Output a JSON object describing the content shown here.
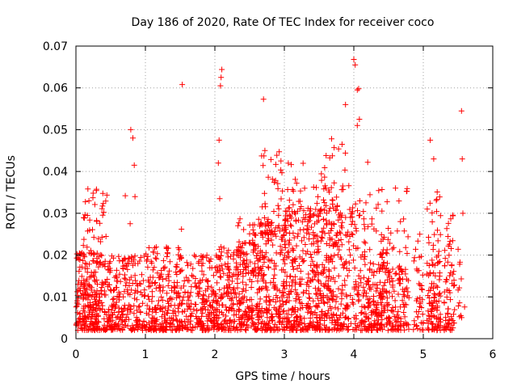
{
  "chart_data": {
    "type": "scatter",
    "title": "Day 186 of 2020, Rate Of TEC Index for receiver coco",
    "xlabel": "GPS time / hours",
    "ylabel": "ROTI / TECUs",
    "xlim": [
      0,
      6
    ],
    "ylim": [
      0,
      0.07
    ],
    "x_ticks": [
      0,
      1,
      2,
      3,
      4,
      5,
      6
    ],
    "x_tick_labels": [
      "0",
      "1",
      "2",
      "3",
      "4",
      "5",
      "6"
    ],
    "y_ticks": [
      0,
      0.01,
      0.02,
      0.03,
      0.04,
      0.05,
      0.06,
      0.07
    ],
    "y_tick_labels": [
      "0",
      "0.01",
      "0.02",
      "0.03",
      "0.04",
      "0.05",
      "0.06",
      "0.07"
    ],
    "grid": true,
    "marker": "+",
    "color": "#ff0000",
    "highlights": [
      {
        "x": 0.79,
        "y": 0.05
      },
      {
        "x": 0.82,
        "y": 0.048
      },
      {
        "x": 0.84,
        "y": 0.0415
      },
      {
        "x": 0.85,
        "y": 0.034
      },
      {
        "x": 0.71,
        "y": 0.0342
      },
      {
        "x": 0.78,
        "y": 0.0275
      },
      {
        "x": 1.53,
        "y": 0.0608
      },
      {
        "x": 1.52,
        "y": 0.0262
      },
      {
        "x": 2.1,
        "y": 0.0644
      },
      {
        "x": 2.09,
        "y": 0.0625
      },
      {
        "x": 2.08,
        "y": 0.0605
      },
      {
        "x": 2.06,
        "y": 0.0475
      },
      {
        "x": 2.05,
        "y": 0.042
      },
      {
        "x": 2.07,
        "y": 0.0335
      },
      {
        "x": 2.7,
        "y": 0.0573
      },
      {
        "x": 2.72,
        "y": 0.045
      },
      {
        "x": 3.68,
        "y": 0.0478
      },
      {
        "x": 3.83,
        "y": 0.0465
      },
      {
        "x": 3.88,
        "y": 0.056
      },
      {
        "x": 4.0,
        "y": 0.0668
      },
      {
        "x": 4.02,
        "y": 0.0655
      },
      {
        "x": 4.05,
        "y": 0.0595
      },
      {
        "x": 4.07,
        "y": 0.0598
      },
      {
        "x": 4.08,
        "y": 0.0525
      },
      {
        "x": 4.05,
        "y": 0.051
      },
      {
        "x": 4.2,
        "y": 0.0422
      },
      {
        "x": 4.6,
        "y": 0.036
      },
      {
        "x": 4.95,
        "y": 0.025
      },
      {
        "x": 5.1,
        "y": 0.0475
      },
      {
        "x": 5.15,
        "y": 0.043
      },
      {
        "x": 5.2,
        "y": 0.0351
      },
      {
        "x": 5.55,
        "y": 0.0545
      },
      {
        "x": 5.56,
        "y": 0.043
      },
      {
        "x": 5.57,
        "y": 0.03
      }
    ],
    "density_segments": [
      {
        "x_from": 0.0,
        "x_to": 0.35,
        "y_min": 0.002,
        "y_max": 0.021,
        "n": 220
      },
      {
        "x_from": 0.1,
        "x_to": 0.45,
        "y_min": 0.02,
        "y_max": 0.036,
        "n": 40
      },
      {
        "x_from": 0.35,
        "x_to": 1.0,
        "y_min": 0.002,
        "y_max": 0.02,
        "n": 260
      },
      {
        "x_from": 1.0,
        "x_to": 1.5,
        "y_min": 0.002,
        "y_max": 0.022,
        "n": 220
      },
      {
        "x_from": 1.5,
        "x_to": 2.0,
        "y_min": 0.002,
        "y_max": 0.02,
        "n": 200
      },
      {
        "x_from": 2.0,
        "x_to": 2.5,
        "y_min": 0.002,
        "y_max": 0.022,
        "n": 230
      },
      {
        "x_from": 2.3,
        "x_to": 2.7,
        "y_min": 0.015,
        "y_max": 0.029,
        "n": 50
      },
      {
        "x_from": 2.5,
        "x_to": 3.0,
        "y_min": 0.002,
        "y_max": 0.028,
        "n": 260
      },
      {
        "x_from": 2.65,
        "x_to": 3.0,
        "y_min": 0.025,
        "y_max": 0.045,
        "n": 45
      },
      {
        "x_from": 3.0,
        "x_to": 3.5,
        "y_min": 0.002,
        "y_max": 0.03,
        "n": 280
      },
      {
        "x_from": 3.0,
        "x_to": 3.5,
        "y_min": 0.028,
        "y_max": 0.044,
        "n": 50
      },
      {
        "x_from": 3.5,
        "x_to": 4.0,
        "y_min": 0.002,
        "y_max": 0.032,
        "n": 260
      },
      {
        "x_from": 3.5,
        "x_to": 3.95,
        "y_min": 0.03,
        "y_max": 0.046,
        "n": 40
      },
      {
        "x_from": 4.0,
        "x_to": 4.5,
        "y_min": 0.002,
        "y_max": 0.018,
        "n": 200
      },
      {
        "x_from": 4.0,
        "x_to": 4.5,
        "y_min": 0.018,
        "y_max": 0.036,
        "n": 55
      },
      {
        "x_from": 4.5,
        "x_to": 4.8,
        "y_min": 0.002,
        "y_max": 0.016,
        "n": 90
      },
      {
        "x_from": 4.5,
        "x_to": 4.8,
        "y_min": 0.016,
        "y_max": 0.036,
        "n": 25
      },
      {
        "x_from": 4.85,
        "x_to": 5.0,
        "y_min": 0.002,
        "y_max": 0.024,
        "n": 40
      },
      {
        "x_from": 5.05,
        "x_to": 5.25,
        "y_min": 0.002,
        "y_max": 0.018,
        "n": 90
      },
      {
        "x_from": 5.05,
        "x_to": 5.25,
        "y_min": 0.018,
        "y_max": 0.034,
        "n": 25
      },
      {
        "x_from": 5.3,
        "x_to": 5.45,
        "y_min": 0.002,
        "y_max": 0.018,
        "n": 55
      },
      {
        "x_from": 5.3,
        "x_to": 5.45,
        "y_min": 0.018,
        "y_max": 0.03,
        "n": 15
      },
      {
        "x_from": 5.5,
        "x_to": 5.6,
        "y_min": 0.005,
        "y_max": 0.022,
        "n": 12
      }
    ]
  }
}
